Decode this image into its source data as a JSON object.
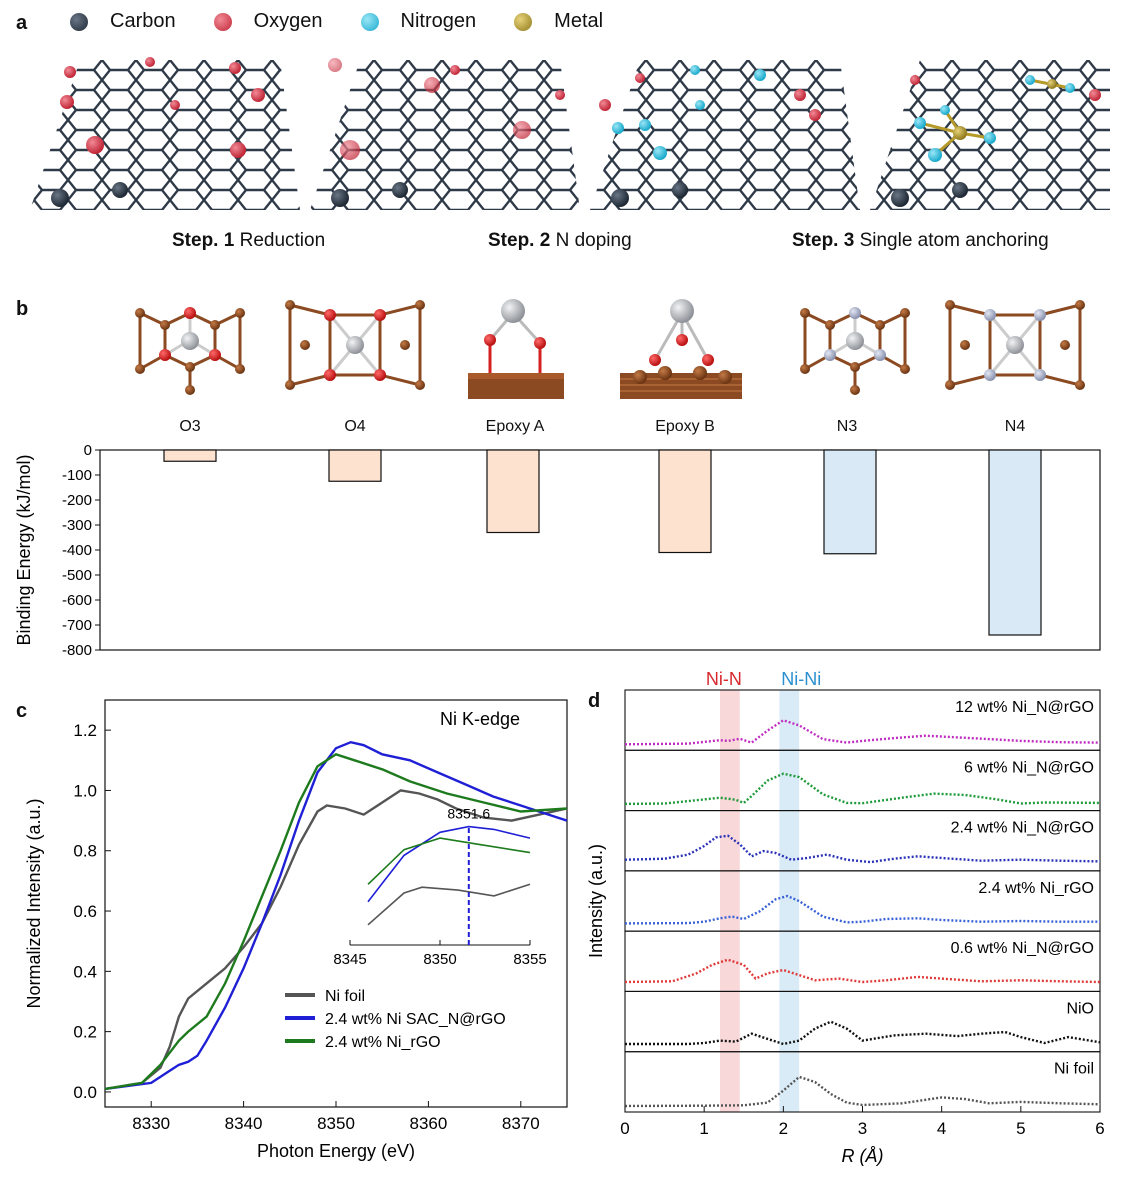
{
  "panel_a": {
    "letter": "a",
    "legend": [
      {
        "label": "Carbon",
        "color": "#2f3a48"
      },
      {
        "label": "Oxygen",
        "color": "#d63a4e"
      },
      {
        "label": "Nitrogen",
        "color": "#2ec4e6"
      },
      {
        "label": "Metal",
        "color": "#b59a2a"
      }
    ],
    "steps": [
      {
        "num": "Step. 1",
        "label": " Reduction"
      },
      {
        "num": "Step. 2",
        "label": " N doping"
      },
      {
        "num": "Step. 3",
        "label": " Single atom anchoring"
      }
    ]
  },
  "panel_b": {
    "letter": "b",
    "structures": [
      "O3",
      "O4",
      "Epoxy A",
      "Epoxy B",
      "N3",
      "N4"
    ]
  },
  "panel_c": {
    "letter": "c"
  },
  "panel_d": {
    "letter": "d"
  },
  "colors": {
    "carbon": "#2f3a48",
    "oxygen": "#d63a4e",
    "nitrogen": "#2ec4e6",
    "metal": "#b59a2a",
    "brown": "#8b4a22",
    "ni_sphere": "#b9bcc0",
    "n_sphere": "#a9b1cc",
    "bar_orange": "#fde3cf",
    "bar_blue": "#d9e9f6"
  },
  "chart_data": [
    {
      "type": "bar",
      "panel": "b",
      "categories": [
        "O3",
        "O4",
        "Epoxy A",
        "Epoxy B",
        "N3",
        "N4"
      ],
      "values": [
        -45,
        -125,
        -330,
        -410,
        -415,
        -740
      ],
      "bar_colors": [
        "#fde3cf",
        "#fde3cf",
        "#fde3cf",
        "#fde3cf",
        "#d9e9f6",
        "#d9e9f6"
      ],
      "ylabel": "Binding Energy (kJ/mol)",
      "ylim": [
        -800,
        0
      ],
      "yticks": [
        "0",
        "-100",
        "-200",
        "-300",
        "-400",
        "-500",
        "-600",
        "-700",
        "-800"
      ]
    },
    {
      "type": "line",
      "panel": "c",
      "title": "Ni K-edge",
      "xlabel": "Photon Energy (eV)",
      "ylabel": "Normalized Intensity (a.u.)",
      "xlim": [
        8325,
        8375
      ],
      "ylim": [
        -0.05,
        1.3
      ],
      "xticks": [
        "8330",
        "8340",
        "8350",
        "8360",
        "8370"
      ],
      "yticks": [
        "0.0",
        "0.2",
        "0.4",
        "0.6",
        "0.8",
        "1.0",
        "1.2"
      ],
      "series": [
        {
          "name": "Ni foil",
          "color": "#555555",
          "x": [
            8325,
            8329,
            8331,
            8332,
            8333,
            8334,
            8336,
            8338,
            8340,
            8342,
            8344,
            8346,
            8348,
            8349,
            8351,
            8353,
            8355,
            8357,
            8359,
            8361,
            8363,
            8366,
            8369,
            8372,
            8375
          ],
          "y": [
            0.01,
            0.03,
            0.08,
            0.15,
            0.25,
            0.31,
            0.36,
            0.41,
            0.48,
            0.56,
            0.68,
            0.82,
            0.93,
            0.95,
            0.94,
            0.92,
            0.96,
            1.0,
            0.99,
            0.97,
            0.94,
            0.91,
            0.9,
            0.92,
            0.94
          ]
        },
        {
          "name": "2.4 wt% Ni SAC_N@rGO",
          "color": "#1f1fd6",
          "x": [
            8325,
            8330,
            8332,
            8333,
            8334,
            8335,
            8336,
            8338,
            8340,
            8342,
            8344,
            8346,
            8348,
            8350,
            8351.6,
            8353,
            8355,
            8358,
            8361,
            8364,
            8367,
            8370,
            8373,
            8375
          ],
          "y": [
            0.01,
            0.03,
            0.07,
            0.09,
            0.1,
            0.12,
            0.17,
            0.28,
            0.41,
            0.56,
            0.72,
            0.9,
            1.06,
            1.14,
            1.16,
            1.15,
            1.12,
            1.1,
            1.06,
            1.02,
            0.98,
            0.95,
            0.92,
            0.9
          ]
        },
        {
          "name": "2.4 wt% Ni_rGO",
          "color": "#1d7a1d",
          "x": [
            8325,
            8329,
            8331,
            8332,
            8333,
            8334,
            8336,
            8338,
            8340,
            8342,
            8344,
            8346,
            8348,
            8350,
            8352,
            8355,
            8358,
            8362,
            8366,
            8370,
            8375
          ],
          "y": [
            0.01,
            0.03,
            0.09,
            0.13,
            0.17,
            0.2,
            0.25,
            0.36,
            0.5,
            0.65,
            0.8,
            0.96,
            1.08,
            1.12,
            1.1,
            1.07,
            1.03,
            0.99,
            0.96,
            0.93,
            0.94
          ]
        }
      ],
      "inset": {
        "xlim": [
          8345,
          8355
        ],
        "xticks": [
          "8345",
          "8350",
          "8355"
        ],
        "annotation": "8351.6",
        "marker_x": 8351.6
      }
    },
    {
      "type": "line",
      "panel": "d",
      "xlabel": "R (Å)",
      "ylabel": "Intensity (a.u.)",
      "xlim": [
        0,
        6
      ],
      "xticks": [
        "0",
        "1",
        "2",
        "3",
        "4",
        "5",
        "6"
      ],
      "bands": [
        {
          "label": "Ni-N",
          "from": 1.2,
          "to": 1.45,
          "color": "#d6282d"
        },
        {
          "label": "Ni-Ni",
          "from": 1.95,
          "to": 2.2,
          "color": "#2a8fd0"
        }
      ],
      "series": [
        {
          "name": "12 wt% Ni_N@rGO",
          "color": "#c02cc0",
          "x": [
            0,
            0.8,
            1.0,
            1.2,
            1.3,
            1.45,
            1.6,
            1.8,
            2.0,
            2.2,
            2.5,
            2.8,
            3.0,
            3.4,
            3.8,
            4.2,
            4.6,
            5.0,
            5.5,
            6.0
          ],
          "y": [
            0.0,
            0.02,
            0.07,
            0.12,
            0.1,
            0.16,
            0.05,
            0.4,
            0.7,
            0.55,
            0.15,
            0.05,
            0.1,
            0.18,
            0.25,
            0.2,
            0.15,
            0.1,
            0.06,
            0.05
          ]
        },
        {
          "name": "6 wt% Ni_N@rGO",
          "color": "#1f9a3a",
          "x": [
            0,
            0.5,
            0.8,
            1.0,
            1.2,
            1.4,
            1.5,
            1.6,
            1.8,
            2.0,
            2.2,
            2.5,
            2.8,
            3.0,
            3.5,
            3.9,
            4.3,
            4.7,
            5.0,
            5.3,
            6.0
          ],
          "y": [
            0.02,
            0.03,
            0.1,
            0.15,
            0.2,
            0.14,
            0.05,
            0.25,
            0.7,
            0.9,
            0.8,
            0.3,
            0.05,
            0.04,
            0.2,
            0.32,
            0.28,
            0.15,
            0.03,
            0.06,
            0.05
          ]
        },
        {
          "name": "2.4 wt% Ni_N@rGO",
          "color": "#2a33b8",
          "x": [
            0,
            0.5,
            0.8,
            1.0,
            1.15,
            1.3,
            1.45,
            1.6,
            1.75,
            1.9,
            2.1,
            2.3,
            2.55,
            2.8,
            3.1,
            3.4,
            3.7,
            4.0,
            4.5,
            5.0,
            5.5,
            6.0
          ],
          "y": [
            0.15,
            0.18,
            0.3,
            0.55,
            0.8,
            0.85,
            0.6,
            0.25,
            0.4,
            0.35,
            0.15,
            0.2,
            0.3,
            0.15,
            0.08,
            0.18,
            0.25,
            0.2,
            0.12,
            0.15,
            0.12,
            0.1
          ]
        },
        {
          "name": "2.4 wt% Ni_rGO",
          "color": "#3a62d8",
          "x": [
            0,
            0.8,
            1.0,
            1.2,
            1.35,
            1.5,
            1.7,
            1.9,
            2.05,
            2.2,
            2.5,
            2.8,
            3.0,
            3.3,
            3.7,
            4.0,
            4.5,
            5.0,
            5.5,
            6.0
          ],
          "y": [
            0.05,
            0.06,
            0.1,
            0.2,
            0.25,
            0.18,
            0.4,
            0.75,
            0.85,
            0.7,
            0.25,
            0.08,
            0.1,
            0.18,
            0.2,
            0.15,
            0.1,
            0.12,
            0.1,
            0.1
          ]
        },
        {
          "name": "0.6 wt% Ni_N@rGO",
          "color": "#e03a3a",
          "x": [
            0,
            0.6,
            0.9,
            1.1,
            1.3,
            1.5,
            1.65,
            1.8,
            2.0,
            2.2,
            2.4,
            2.7,
            3.0,
            3.3,
            3.7,
            4.0,
            4.5,
            5.0,
            5.5,
            6.0
          ],
          "y": [
            0.1,
            0.12,
            0.35,
            0.6,
            0.75,
            0.6,
            0.2,
            0.35,
            0.45,
            0.3,
            0.15,
            0.2,
            0.1,
            0.15,
            0.25,
            0.2,
            0.12,
            0.15,
            0.12,
            0.1
          ]
        },
        {
          "name": "NiO",
          "color": "#111111",
          "x": [
            0,
            0.8,
            1.0,
            1.2,
            1.4,
            1.6,
            1.8,
            2.0,
            2.2,
            2.4,
            2.6,
            2.8,
            3.0,
            3.4,
            3.8,
            4.2,
            4.5,
            4.8,
            5.0,
            5.3,
            5.6,
            6.0
          ],
          "y": [
            0.05,
            0.05,
            0.08,
            0.15,
            0.12,
            0.35,
            0.2,
            0.05,
            0.15,
            0.5,
            0.7,
            0.5,
            0.15,
            0.3,
            0.35,
            0.28,
            0.35,
            0.4,
            0.25,
            0.08,
            0.25,
            0.1
          ]
        },
        {
          "name": "Ni foil",
          "color": "#555555",
          "x": [
            0,
            1.0,
            1.5,
            1.8,
            2.0,
            2.2,
            2.4,
            2.6,
            2.8,
            3.0,
            3.5,
            4.0,
            4.3,
            4.6,
            5.0,
            5.5,
            6.0
          ],
          "y": [
            0.0,
            0.01,
            0.02,
            0.1,
            0.45,
            0.85,
            0.7,
            0.35,
            0.1,
            0.03,
            0.08,
            0.25,
            0.2,
            0.08,
            0.12,
            0.08,
            0.05
          ]
        }
      ]
    }
  ]
}
